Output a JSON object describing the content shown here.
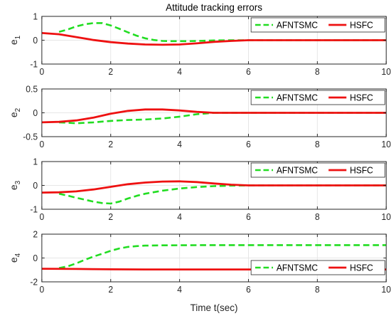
{
  "figure": {
    "title": "Attitude tracking errors",
    "xlabel": "Time t(sec)"
  },
  "colors": {
    "AFNTSMC": "#22dd22",
    "HSFC": "#ee1111",
    "grid": "#e6e6e6",
    "axis": "#262626"
  },
  "chart_data": [
    {
      "type": "line",
      "ylabel": "e",
      "ylabel_sub": "1",
      "xlim": [
        0,
        10
      ],
      "ylim": [
        -1,
        1
      ],
      "xticks": [
        0,
        2,
        4,
        6,
        8,
        10
      ],
      "yticks": [
        -1,
        0,
        1
      ],
      "grid": true,
      "legend": "top-right",
      "series": [
        {
          "name": "AFNTSMC",
          "style": "dashed",
          "x": [
            0.5,
            0.75,
            1.0,
            1.25,
            1.5,
            1.75,
            2.0,
            2.25,
            2.5,
            2.75,
            3.0,
            3.25,
            3.5,
            3.75,
            4.0,
            4.25,
            4.5,
            4.75,
            5.0,
            5.5,
            6.0,
            7.0,
            8.0,
            9.0,
            10.0
          ],
          "y": [
            0.35,
            0.45,
            0.58,
            0.67,
            0.72,
            0.72,
            0.62,
            0.48,
            0.33,
            0.19,
            0.08,
            0.01,
            -0.03,
            -0.04,
            -0.04,
            -0.04,
            -0.03,
            -0.02,
            -0.01,
            0.0,
            0.0,
            0.0,
            0.0,
            0.0,
            0.0
          ]
        },
        {
          "name": "HSFC",
          "style": "solid",
          "x": [
            0,
            0.5,
            1.0,
            1.5,
            2.0,
            2.5,
            3.0,
            3.5,
            4.0,
            4.5,
            5.0,
            5.5,
            6.0,
            7.0,
            8.0,
            9.0,
            10.0
          ],
          "y": [
            0.3,
            0.25,
            0.13,
            0.01,
            -0.08,
            -0.14,
            -0.18,
            -0.19,
            -0.18,
            -0.13,
            -0.07,
            -0.03,
            0.0,
            0.0,
            0.0,
            0.0,
            0.0
          ]
        }
      ]
    },
    {
      "type": "line",
      "ylabel": "e",
      "ylabel_sub": "2",
      "xlim": [
        0,
        10
      ],
      "ylim": [
        -0.5,
        0.5
      ],
      "xticks": [
        0,
        2,
        4,
        6,
        8,
        10
      ],
      "yticks": [
        -0.5,
        0,
        0.5
      ],
      "grid": true,
      "legend": "top-right",
      "series": [
        {
          "name": "AFNTSMC",
          "style": "dashed",
          "x": [
            0.5,
            1.0,
            1.5,
            2.0,
            2.5,
            3.0,
            3.5,
            4.0,
            4.5,
            5.0,
            5.5,
            6.0,
            7.0,
            8.0,
            9.0,
            10.0
          ],
          "y": [
            -0.2,
            -0.22,
            -0.2,
            -0.17,
            -0.15,
            -0.14,
            -0.12,
            -0.08,
            -0.03,
            0.0,
            0.0,
            0.0,
            0.0,
            0.0,
            0.0,
            0.0
          ]
        },
        {
          "name": "HSFC",
          "style": "solid",
          "x": [
            0,
            0.5,
            1.0,
            1.5,
            2.0,
            2.5,
            3.0,
            3.5,
            4.0,
            4.5,
            5.0,
            5.5,
            6.0,
            7.0,
            8.0,
            9.0,
            10.0
          ],
          "y": [
            -0.2,
            -0.19,
            -0.16,
            -0.1,
            -0.02,
            0.04,
            0.07,
            0.07,
            0.05,
            0.02,
            0.0,
            0.0,
            0.0,
            0.0,
            0.0,
            0.0,
            0.0
          ]
        }
      ]
    },
    {
      "type": "line",
      "ylabel": "e",
      "ylabel_sub": "3",
      "xlim": [
        0,
        10
      ],
      "ylim": [
        -1,
        1
      ],
      "xticks": [
        0,
        2,
        4,
        6,
        8,
        10
      ],
      "yticks": [
        -1,
        0,
        1
      ],
      "grid": true,
      "legend": "top-right",
      "series": [
        {
          "name": "AFNTSMC",
          "style": "dashed",
          "x": [
            0.5,
            0.75,
            1.0,
            1.25,
            1.5,
            1.75,
            2.0,
            2.25,
            2.5,
            2.75,
            3.0,
            3.5,
            4.0,
            4.5,
            5.0,
            5.5,
            6.0,
            7.0,
            8.0,
            9.0,
            10.0
          ],
          "y": [
            -0.35,
            -0.43,
            -0.52,
            -0.6,
            -0.68,
            -0.74,
            -0.76,
            -0.68,
            -0.55,
            -0.44,
            -0.35,
            -0.22,
            -0.13,
            -0.07,
            -0.03,
            -0.01,
            0.0,
            0.0,
            0.0,
            0.0,
            0.0
          ]
        },
        {
          "name": "HSFC",
          "style": "solid",
          "x": [
            0,
            0.5,
            1.0,
            1.5,
            2.0,
            2.5,
            3.0,
            3.5,
            4.0,
            4.5,
            5.0,
            5.5,
            6.0,
            7.0,
            8.0,
            9.0,
            10.0
          ],
          "y": [
            -0.3,
            -0.29,
            -0.25,
            -0.17,
            -0.06,
            0.05,
            0.12,
            0.16,
            0.17,
            0.14,
            0.08,
            0.03,
            0.0,
            0.0,
            0.0,
            0.0,
            0.0
          ]
        }
      ]
    },
    {
      "type": "line",
      "ylabel": "e",
      "ylabel_sub": "4",
      "xlim": [
        0,
        10
      ],
      "ylim": [
        -2,
        2
      ],
      "xticks": [
        0,
        2,
        4,
        6,
        8,
        10
      ],
      "yticks": [
        -2,
        0,
        2
      ],
      "grid": true,
      "legend": "bottom-right",
      "series": [
        {
          "name": "AFNTSMC",
          "style": "dashed",
          "x": [
            0.5,
            0.75,
            1.0,
            1.25,
            1.5,
            1.75,
            2.0,
            2.25,
            2.5,
            2.75,
            3.0,
            3.5,
            4.0,
            5.0,
            6.0,
            7.0,
            8.0,
            9.0,
            10.0
          ],
          "y": [
            -0.85,
            -0.7,
            -0.45,
            -0.15,
            0.12,
            0.35,
            0.6,
            0.8,
            0.93,
            1.0,
            1.04,
            1.06,
            1.07,
            1.08,
            1.08,
            1.08,
            1.08,
            1.08,
            1.08
          ]
        },
        {
          "name": "HSFC",
          "style": "solid",
          "x": [
            0,
            1.0,
            2.0,
            3.0,
            4.0,
            5.0,
            6.0,
            7.0,
            8.0,
            9.0,
            10.0
          ],
          "y": [
            -0.9,
            -0.92,
            -0.95,
            -0.96,
            -0.96,
            -0.96,
            -0.96,
            -0.96,
            -0.96,
            -0.96,
            -0.96
          ]
        }
      ]
    }
  ]
}
